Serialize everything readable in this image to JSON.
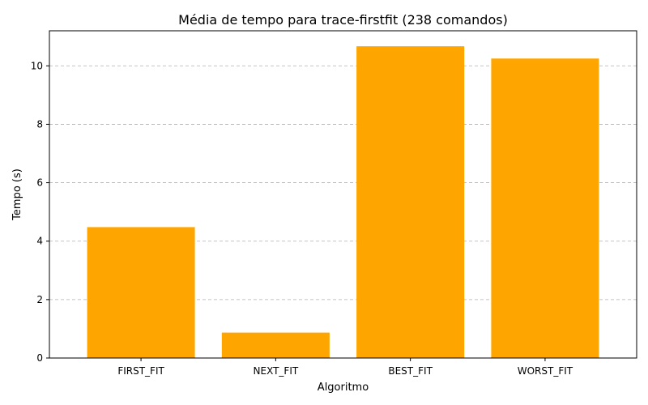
{
  "chart_data": {
    "type": "bar",
    "title": "Média de tempo para trace-firstfit (238 comandos)",
    "xlabel": "Algoritmo",
    "ylabel": "Tempo (s)",
    "categories": [
      "FIRST_FIT",
      "NEXT_FIT",
      "BEST_FIT",
      "WORST_FIT"
    ],
    "values": [
      4.48,
      0.87,
      10.67,
      10.25
    ],
    "ylim": [
      0,
      11.2
    ],
    "yticks": [
      "0",
      "2",
      "4",
      "6",
      "8",
      "10"
    ],
    "grid": "y-dashed",
    "bar_color": "#ffa500",
    "legend": "none"
  }
}
